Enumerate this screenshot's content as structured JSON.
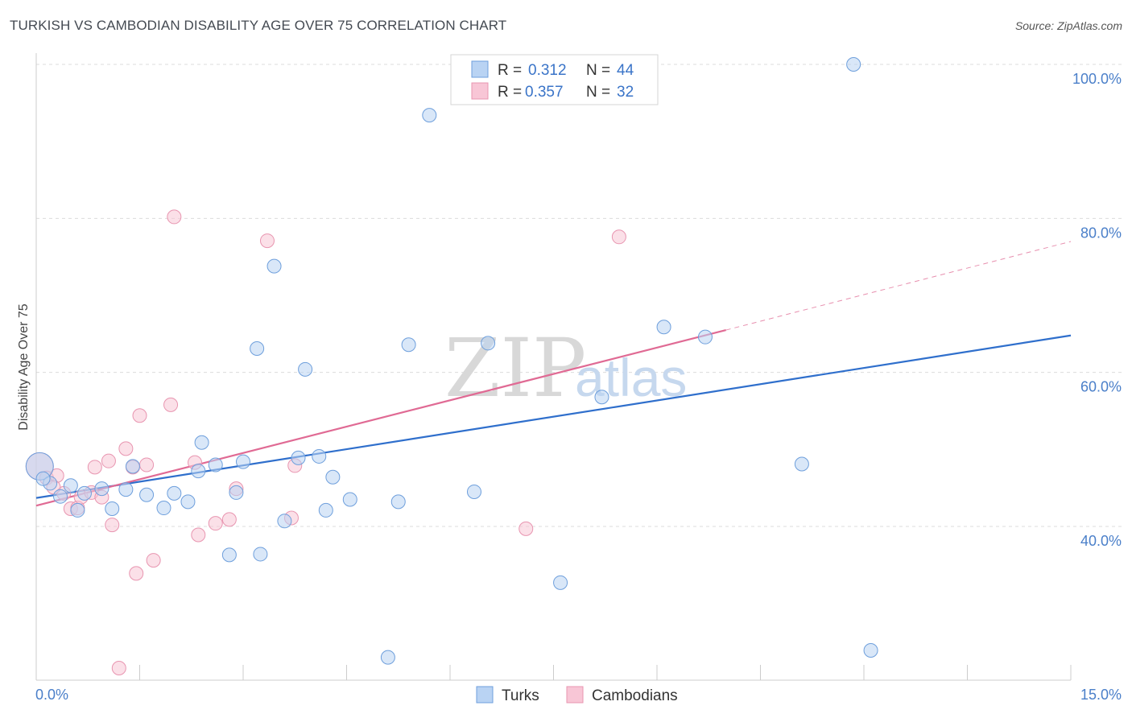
{
  "header": {
    "title": "TURKISH VS CAMBODIAN DISABILITY AGE OVER 75 CORRELATION CHART",
    "source": "Source: ZipAtlas.com"
  },
  "watermark": {
    "part1": "ZIP",
    "part2": "atlas"
  },
  "legend": {
    "turks": {
      "r_label": "R =",
      "r_value": "0.312",
      "n_label": "N =",
      "n_value": "44"
    },
    "cambodians": {
      "r_label": "R =",
      "r_value": "0.357",
      "n_label": "N =",
      "n_value": "32"
    }
  },
  "bottom_legend": {
    "turks": "Turks",
    "cambodians": "Cambodians"
  },
  "colors": {
    "turks_fill": "#b9d3f3",
    "turks_stroke": "#6e9fdc",
    "turks_line": "#2f6fcc",
    "cambodians_fill": "#f8c6d6",
    "cambodians_stroke": "#e895b0",
    "cambodians_line": "#e06a94",
    "grid": "#dcdcdc",
    "tick_label": "#4a7fc9"
  },
  "chart_data": {
    "type": "scatter",
    "title": "TURKISH VS CAMBODIAN DISABILITY AGE OVER 75 CORRELATION CHART",
    "xlabel": "",
    "ylabel": "Disability Age Over 75",
    "xlim": [
      0,
      15
    ],
    "ylim": [
      20,
      102
    ],
    "x_tick_labels": [
      "0.0%",
      "15.0%"
    ],
    "y_ticks": [
      40,
      60,
      80,
      100
    ],
    "y_tick_labels": [
      "40.0%",
      "60.0%",
      "80.0%",
      "100.0%"
    ],
    "series": [
      {
        "name": "Turks",
        "R": 0.312,
        "N": 44,
        "trend": {
          "x0": 0,
          "y0": 43.7,
          "x1": 15,
          "y1": 64.8
        },
        "points": [
          {
            "x": 0.05,
            "y": 47.8,
            "big": true
          },
          {
            "x": 0.2,
            "y": 45.6
          },
          {
            "x": 0.35,
            "y": 43.9
          },
          {
            "x": 0.5,
            "y": 45.3
          },
          {
            "x": 0.6,
            "y": 42.1
          },
          {
            "x": 0.95,
            "y": 44.9
          },
          {
            "x": 1.1,
            "y": 42.3
          },
          {
            "x": 1.4,
            "y": 47.8
          },
          {
            "x": 1.3,
            "y": 44.8
          },
          {
            "x": 1.6,
            "y": 44.1
          },
          {
            "x": 1.85,
            "y": 42.4
          },
          {
            "x": 2.0,
            "y": 44.3
          },
          {
            "x": 2.2,
            "y": 43.2
          },
          {
            "x": 2.35,
            "y": 47.2
          },
          {
            "x": 2.4,
            "y": 50.9
          },
          {
            "x": 2.6,
            "y": 48.0
          },
          {
            "x": 2.8,
            "y": 36.3
          },
          {
            "x": 2.9,
            "y": 44.4
          },
          {
            "x": 3.0,
            "y": 48.4
          },
          {
            "x": 3.2,
            "y": 63.1
          },
          {
            "x": 3.25,
            "y": 36.4
          },
          {
            "x": 3.45,
            "y": 73.8
          },
          {
            "x": 3.6,
            "y": 40.7
          },
          {
            "x": 3.8,
            "y": 48.9
          },
          {
            "x": 3.9,
            "y": 60.4
          },
          {
            "x": 4.1,
            "y": 49.1
          },
          {
            "x": 4.2,
            "y": 42.1
          },
          {
            "x": 4.3,
            "y": 46.4
          },
          {
            "x": 4.55,
            "y": 43.5
          },
          {
            "x": 5.1,
            "y": 23.0
          },
          {
            "x": 5.25,
            "y": 43.2
          },
          {
            "x": 5.4,
            "y": 63.6
          },
          {
            "x": 5.7,
            "y": 93.4
          },
          {
            "x": 6.35,
            "y": 44.5
          },
          {
            "x": 6.55,
            "y": 63.8
          },
          {
            "x": 7.6,
            "y": 32.7
          },
          {
            "x": 8.2,
            "y": 56.8
          },
          {
            "x": 9.1,
            "y": 65.9
          },
          {
            "x": 9.7,
            "y": 64.6
          },
          {
            "x": 11.1,
            "y": 48.1
          },
          {
            "x": 11.85,
            "y": 100.0
          },
          {
            "x": 12.1,
            "y": 23.9
          },
          {
            "x": 0.1,
            "y": 46.2
          },
          {
            "x": 0.7,
            "y": 44.3
          }
        ]
      },
      {
        "name": "Cambodians",
        "R": 0.357,
        "N": 32,
        "trend": {
          "x0": 0,
          "y0": 42.7,
          "x1": 10.0,
          "y1": 65.5
        },
        "trend_dashed": {
          "x0": 10.0,
          "y0": 65.5,
          "x1": 15,
          "y1": 77.0
        },
        "points": [
          {
            "x": 0.05,
            "y": 47.8,
            "big": true
          },
          {
            "x": 0.15,
            "y": 46.3
          },
          {
            "x": 0.3,
            "y": 46.6
          },
          {
            "x": 0.4,
            "y": 44.3
          },
          {
            "x": 0.5,
            "y": 42.3
          },
          {
            "x": 0.6,
            "y": 42.4
          },
          {
            "x": 0.65,
            "y": 43.8
          },
          {
            "x": 0.8,
            "y": 44.4
          },
          {
            "x": 0.85,
            "y": 47.7
          },
          {
            "x": 0.95,
            "y": 43.8
          },
          {
            "x": 1.05,
            "y": 48.5
          },
          {
            "x": 1.1,
            "y": 40.2
          },
          {
            "x": 1.3,
            "y": 50.1
          },
          {
            "x": 1.4,
            "y": 47.7
          },
          {
            "x": 1.45,
            "y": 33.9
          },
          {
            "x": 1.5,
            "y": 54.4
          },
          {
            "x": 1.6,
            "y": 48.0
          },
          {
            "x": 1.7,
            "y": 35.6
          },
          {
            "x": 1.95,
            "y": 55.8
          },
          {
            "x": 2.0,
            "y": 80.2
          },
          {
            "x": 2.3,
            "y": 48.3
          },
          {
            "x": 2.35,
            "y": 38.9
          },
          {
            "x": 2.6,
            "y": 40.4
          },
          {
            "x": 2.8,
            "y": 40.9
          },
          {
            "x": 2.9,
            "y": 44.9
          },
          {
            "x": 3.35,
            "y": 77.1
          },
          {
            "x": 3.7,
            "y": 41.1
          },
          {
            "x": 3.75,
            "y": 47.9
          },
          {
            "x": 1.2,
            "y": 21.6
          },
          {
            "x": 7.1,
            "y": 39.7
          },
          {
            "x": 8.45,
            "y": 77.6
          },
          {
            "x": 0.25,
            "y": 45.1
          }
        ]
      }
    ]
  }
}
